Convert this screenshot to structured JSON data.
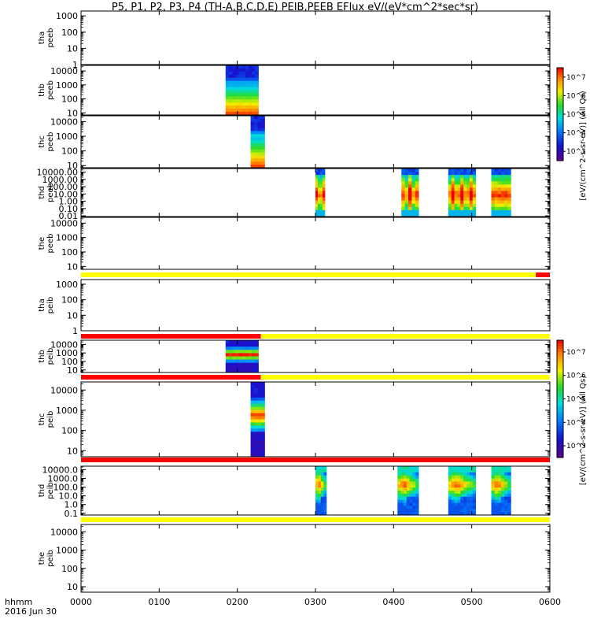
{
  "chart_data": {
    "type": "heatmap",
    "title": "P5, P1, P2, P3, P4 (TH-A,B,C,D,E) PEIB,PEEB EFlux eV/(eV*cm^2*sec*sr)",
    "x_axis": {
      "ticks": [
        "0000",
        "0100",
        "0200",
        "0300",
        "0400",
        "0500",
        "0600"
      ],
      "range_hours": [
        0,
        6
      ],
      "label_line1": "hhmm",
      "label_line2": "2016 Jun 30"
    },
    "colorbars": [
      {
        "name": "electron",
        "title": "[eV/(cm^2-s-sr-eV)] (All Qs)",
        "ticks": [
          "10^3",
          "10^4",
          "10^5",
          "10^6",
          "10^7"
        ]
      },
      {
        "name": "ion",
        "title": "[eV/(cm^2-s-sr-eV)] (All Qs)",
        "ticks": [
          "10^3",
          "10^4",
          "10^5",
          "10^6",
          "10^7"
        ]
      }
    ],
    "panels": [
      {
        "label1": "tha",
        "label2": "peeb",
        "ylim_log": [
          0,
          3.3
        ],
        "yticks": [
          "1",
          "10",
          "100",
          "1000"
        ],
        "blocks": []
      },
      {
        "label1": "thb",
        "label2": "peeb",
        "ylim_log": [
          0.85,
          4.4
        ],
        "yticks": [
          "10",
          "100",
          "1000",
          "10000"
        ],
        "blocks": [
          {
            "start_h": 1.85,
            "end_h": 2.27,
            "pattern": "spectrum"
          }
        ]
      },
      {
        "label1": "thc",
        "label2": "peeb",
        "ylim_log": [
          0.85,
          4.4
        ],
        "yticks": [
          "10",
          "100",
          "1000",
          "10000"
        ],
        "blocks": [
          {
            "start_h": 2.17,
            "end_h": 2.35,
            "pattern": "spectrum"
          }
        ]
      },
      {
        "label1": "thd",
        "label2": "peeb",
        "ylim_log": [
          -2.1,
          4.5
        ],
        "yticks": [
          "0.01",
          "0.10",
          "1.00",
          "10.00",
          "100.00",
          "1000.00",
          "10000.00"
        ],
        "blocks": [
          {
            "start_h": 3.0,
            "end_h": 3.12,
            "pattern": "burst"
          },
          {
            "start_h": 4.1,
            "end_h": 4.32,
            "pattern": "burst"
          },
          {
            "start_h": 4.7,
            "end_h": 5.05,
            "pattern": "burst"
          },
          {
            "start_h": 5.25,
            "end_h": 5.5,
            "pattern": "burst"
          }
        ]
      },
      {
        "label1": "the",
        "label2": "peeb",
        "ylim_log": [
          0.8,
          4.4
        ],
        "yticks": [
          "10",
          "100",
          "1000",
          "10000"
        ],
        "blocks": []
      },
      {
        "label1": "tha",
        "label2": "peib",
        "ylim_log": [
          0,
          3.3
        ],
        "yticks": [
          "1",
          "10",
          "100",
          "1000"
        ],
        "blocks": []
      },
      {
        "label1": "thb",
        "label2": "peib",
        "ylim_log": [
          0.7,
          4.5
        ],
        "yticks": [
          "10",
          "100",
          "1000",
          "10000"
        ],
        "blocks": [
          {
            "start_h": 1.85,
            "end_h": 2.27,
            "pattern": "ion"
          }
        ]
      },
      {
        "label1": "thc",
        "label2": "peib",
        "ylim_log": [
          0.7,
          4.4
        ],
        "yticks": [
          "10",
          "100",
          "1000",
          "10000"
        ],
        "blocks": [
          {
            "start_h": 2.17,
            "end_h": 2.35,
            "pattern": "ion"
          }
        ]
      },
      {
        "label1": "thd",
        "label2": "peib",
        "ylim_log": [
          -1.2,
          4.4
        ],
        "yticks": [
          "0.1",
          "1.0",
          "10.0",
          "100.0",
          "1000.0",
          "10000.0"
        ],
        "blocks": [
          {
            "start_h": 3.0,
            "end_h": 3.14,
            "pattern": "ionburst"
          },
          {
            "start_h": 4.05,
            "end_h": 4.32,
            "pattern": "ionburst"
          },
          {
            "start_h": 4.7,
            "end_h": 5.05,
            "pattern": "ionburst"
          },
          {
            "start_h": 5.25,
            "end_h": 5.5,
            "pattern": "ionburst"
          }
        ]
      },
      {
        "label1": "the",
        "label2": "peib",
        "ylim_log": [
          0.7,
          4.4
        ],
        "yticks": [
          "10",
          "100",
          "1000",
          "10000"
        ],
        "blocks": []
      }
    ],
    "mode_bars": [
      {
        "segments": [
          {
            "start_h": 0,
            "end_h": 5.82,
            "color": "#ffff00"
          },
          {
            "start_h": 5.82,
            "end_h": 6,
            "color": "#ff0000"
          }
        ]
      },
      {
        "segments": [
          {
            "start_h": 0,
            "end_h": 2.3,
            "color": "#ff0000"
          },
          {
            "start_h": 2.3,
            "end_h": 6,
            "color": "#ffff00"
          }
        ]
      },
      {
        "segments": [
          {
            "start_h": 0,
            "end_h": 2.3,
            "color": "#ff0000"
          },
          {
            "start_h": 2.3,
            "end_h": 6,
            "color": "#ffff00"
          }
        ]
      },
      {
        "segments": [
          {
            "start_h": 0,
            "end_h": 6,
            "color": "#ff0000"
          }
        ]
      },
      {
        "segments": [
          {
            "start_h": 0,
            "end_h": 6,
            "color": "#ffff00"
          }
        ]
      }
    ]
  }
}
